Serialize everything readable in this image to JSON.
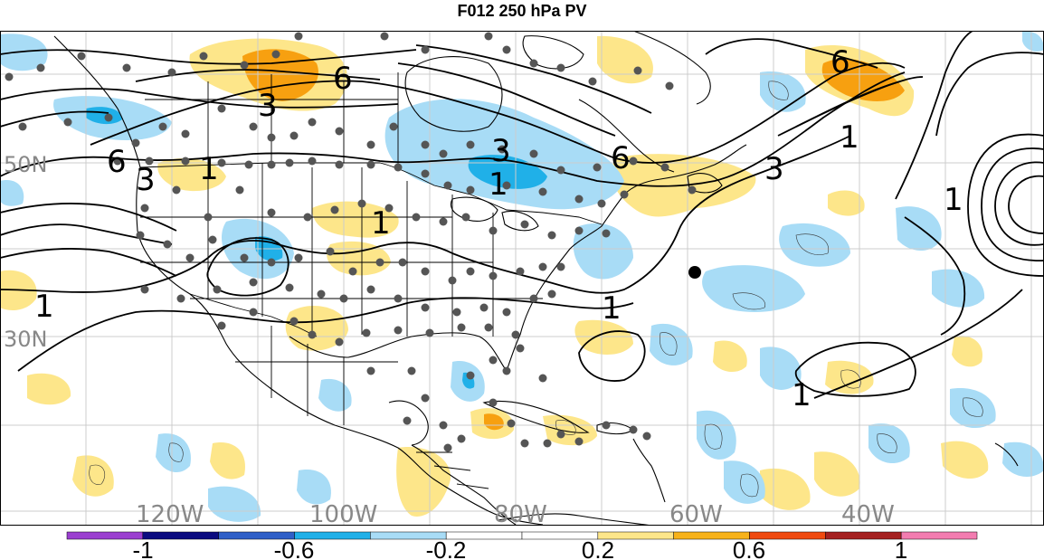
{
  "title": "F012 250 hPa PV",
  "lat_labels": [
    "50N",
    "30N"
  ],
  "lon_labels": [
    "120W",
    "100W",
    "80W",
    "60W",
    "40W"
  ],
  "contour_labels": [
    "6",
    "3",
    "6",
    "3",
    "1",
    "6",
    "3",
    "1",
    "6",
    "3",
    "1",
    "1",
    "1",
    "1",
    "1",
    "1"
  ],
  "colorbar": {
    "tick_labels": [
      "-1",
      "-0.6",
      "-0.2",
      "0.2",
      "0.6",
      "1"
    ],
    "colors": [
      "#9b3fd0",
      "#0b0b80",
      "#2f5fc8",
      "#20b0e8",
      "#a8dcf6",
      "#ffffff",
      "#ffffff",
      "#fde68a",
      "#f7b21a",
      "#f04a10",
      "#a52020",
      "#f37cb0"
    ]
  },
  "colors": {
    "positive_light": "#fde68a",
    "positive_dark": "#f7a010",
    "negative_light": "#a8dcf6",
    "negative_dark": "#20b0e8",
    "station": "#555555",
    "grid": "#cccccc"
  }
}
